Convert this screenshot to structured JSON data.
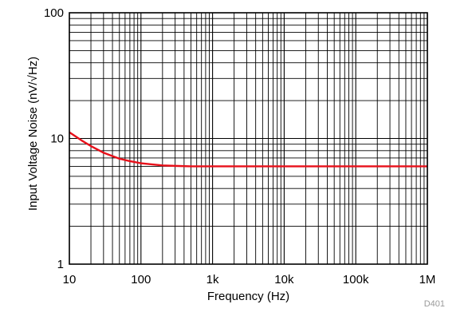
{
  "chart_data": {
    "type": "line",
    "title": "",
    "xlabel": "Frequency (Hz)",
    "ylabel": "Input Voltage Noise (nV/√Hz)",
    "x_scale": "log",
    "y_scale": "log",
    "xlim": [
      10,
      1000000
    ],
    "ylim": [
      1,
      100
    ],
    "grid": true,
    "x_ticks": [
      {
        "value": 10,
        "label": "10"
      },
      {
        "value": 100,
        "label": "100"
      },
      {
        "value": 1000,
        "label": "1k"
      },
      {
        "value": 10000,
        "label": "10k"
      },
      {
        "value": 100000,
        "label": "100k"
      },
      {
        "value": 1000000,
        "label": "1M"
      }
    ],
    "y_ticks": [
      {
        "value": 1,
        "label": "1"
      },
      {
        "value": 10,
        "label": "10"
      },
      {
        "value": 100,
        "label": "100"
      }
    ],
    "series": [
      {
        "color": "#e8101a",
        "x": [
          10,
          15,
          20,
          30,
          50,
          70,
          100,
          150,
          200,
          300,
          500,
          700,
          1000,
          2000,
          5000,
          10000,
          100000,
          1000000
        ],
        "y": [
          11.2,
          9.6,
          8.7,
          7.7,
          6.9,
          6.6,
          6.35,
          6.2,
          6.1,
          6.05,
          6.0,
          6.0,
          6.0,
          6.0,
          6.0,
          6.0,
          6.0,
          6.0
        ]
      }
    ],
    "annotation": "D401"
  }
}
